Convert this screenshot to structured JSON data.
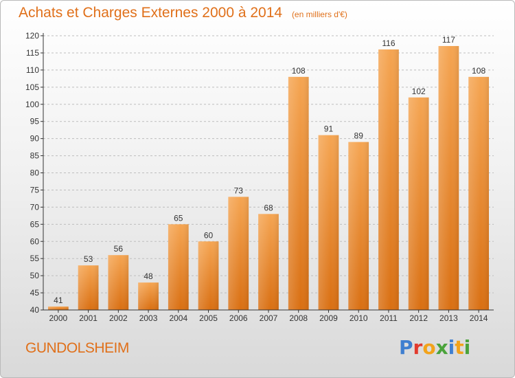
{
  "header": {
    "title": "Achats et Charges Externes 2000 à 2014",
    "subtitle": "(en milliers d'€)"
  },
  "footer": {
    "place": "GUNDOLSHEIM",
    "logo": {
      "letters": [
        "P",
        "r",
        "o",
        "x",
        "i",
        "t",
        "i"
      ],
      "colors": [
        "#3f7fd0",
        "#e23b2e",
        "#f2a31b",
        "#4aa33b",
        "#3f7fd0",
        "#f2a31b",
        "#4aa33b"
      ]
    }
  },
  "chart_data": {
    "type": "bar",
    "title": "Achats et Charges Externes 2000 à 2014",
    "subtitle": "(en milliers d'€)",
    "categories": [
      "2000",
      "2001",
      "2002",
      "2003",
      "2004",
      "2005",
      "2006",
      "2007",
      "2008",
      "2009",
      "2010",
      "2011",
      "2012",
      "2013",
      "2014"
    ],
    "values": [
      41,
      53,
      56,
      48,
      65,
      60,
      73,
      68,
      108,
      91,
      89,
      116,
      102,
      117,
      108
    ],
    "ylim": [
      40,
      120
    ],
    "yticks": [
      40,
      45,
      50,
      55,
      60,
      65,
      70,
      75,
      80,
      85,
      90,
      95,
      100,
      105,
      110,
      115,
      120
    ],
    "grid": true,
    "colors": {
      "bar_top": "#f5a552",
      "bar_bottom": "#d96f12",
      "label": "#333333",
      "axis": "#333333",
      "grid": "#bdbdbd"
    }
  }
}
